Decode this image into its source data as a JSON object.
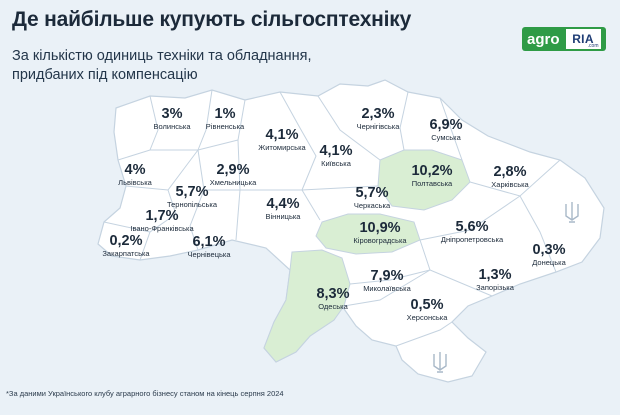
{
  "header": {
    "title": "Де найбільше купують сільгосптехніку",
    "subtitle_line1": "За кількістю одиниць техніки та обладнання,",
    "subtitle_line2": "придбаних під компенсацію"
  },
  "logo": {
    "part1": "agro",
    "part2": "RIA",
    "domain": ".com"
  },
  "colors": {
    "background": "#eaf1f7",
    "region_fill": "#ffffff",
    "highlight_fill": "#d9eed3",
    "border": "#c5d3e0",
    "brand_green": "#2f9b46"
  },
  "regions": [
    {
      "name": "Волинська",
      "value": "3%",
      "highlighted": false
    },
    {
      "name": "Рівненська",
      "value": "1%",
      "highlighted": false
    },
    {
      "name": "Житомирська",
      "value": "4,1%",
      "highlighted": false
    },
    {
      "name": "Київська",
      "value": "4,1%",
      "highlighted": false
    },
    {
      "name": "Чернігівська",
      "value": "2,3%",
      "highlighted": false
    },
    {
      "name": "Сумська",
      "value": "6,9%",
      "highlighted": false
    },
    {
      "name": "Львівська",
      "value": "4%",
      "highlighted": false
    },
    {
      "name": "Хмельницька",
      "value": "2,9%",
      "highlighted": false
    },
    {
      "name": "Тернопільська",
      "value": "5,7%",
      "highlighted": false
    },
    {
      "name": "Вінницька",
      "value": "4,4%",
      "highlighted": false
    },
    {
      "name": "Черкаська",
      "value": "5,7%",
      "highlighted": false
    },
    {
      "name": "Полтавська",
      "value": "10,2%",
      "highlighted": true
    },
    {
      "name": "Харківська",
      "value": "2,8%",
      "highlighted": false
    },
    {
      "name": "Івано-Франківська",
      "value": "1,7%",
      "highlighted": false
    },
    {
      "name": "Закарпатська",
      "value": "0,2%",
      "highlighted": false
    },
    {
      "name": "Чернівецька",
      "value": "6,1%",
      "highlighted": false
    },
    {
      "name": "Кіровоградська",
      "value": "10,9%",
      "highlighted": true
    },
    {
      "name": "Дніпропетровська",
      "value": "5,6%",
      "highlighted": false
    },
    {
      "name": "Донецька",
      "value": "0,3%",
      "highlighted": false
    },
    {
      "name": "Одеська",
      "value": "8,3%",
      "highlighted": true
    },
    {
      "name": "Миколаївська",
      "value": "7,9%",
      "highlighted": false
    },
    {
      "name": "Запорізька",
      "value": "1,3%",
      "highlighted": false
    },
    {
      "name": "Херсонська",
      "value": "0,5%",
      "highlighted": false
    }
  ],
  "footnote": "*За даними Українського клубу аграрного бізнесу станом на кінець серпня 2024"
}
